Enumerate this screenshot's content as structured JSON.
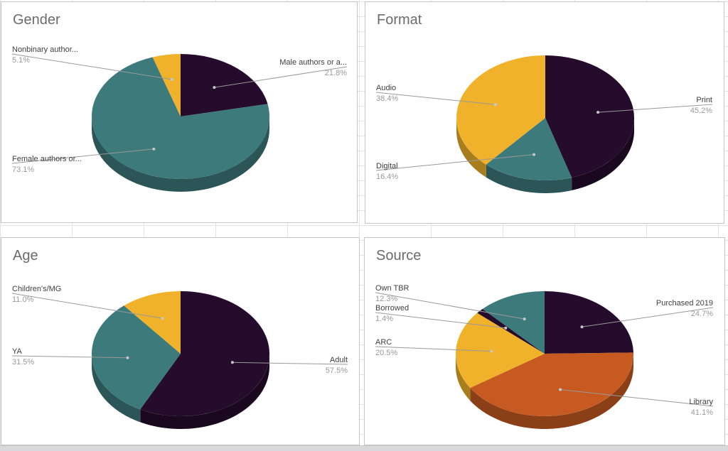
{
  "colors": {
    "dark_purple": "#250b2c",
    "teal": "#3d7a7c",
    "yellow": "#f0b22b",
    "orange": "#c75a21",
    "leader": "#9a9a9a"
  },
  "chart_data": [
    {
      "type": "pie",
      "title": "Gender",
      "slices": [
        {
          "label": "Male authors or a...",
          "value": 21.8,
          "pct_label": "21.8%",
          "color": "#250b2c"
        },
        {
          "label": "Female authors or...",
          "value": 73.1,
          "pct_label": "73.1%",
          "color": "#3d7a7c"
        },
        {
          "label": "Nonbinary author...",
          "value": 5.1,
          "pct_label": "5.1%",
          "color": "#f0b22b"
        }
      ]
    },
    {
      "type": "pie",
      "title": "Format",
      "slices": [
        {
          "label": "Print",
          "value": 45.2,
          "pct_label": "45.2%",
          "color": "#250b2c"
        },
        {
          "label": "Digital",
          "value": 16.4,
          "pct_label": "16.4%",
          "color": "#3d7a7c"
        },
        {
          "label": "Audio",
          "value": 38.4,
          "pct_label": "38.4%",
          "color": "#f0b22b"
        }
      ]
    },
    {
      "type": "pie",
      "title": "Age",
      "slices": [
        {
          "label": "Adult",
          "value": 57.5,
          "pct_label": "57.5%",
          "color": "#250b2c"
        },
        {
          "label": "YA",
          "value": 31.5,
          "pct_label": "31.5%",
          "color": "#3d7a7c"
        },
        {
          "label": "Children's/MG",
          "value": 11.0,
          "pct_label": "11.0%",
          "color": "#f0b22b"
        }
      ]
    },
    {
      "type": "pie",
      "title": "Source",
      "slices": [
        {
          "label": "Purchased 2019",
          "value": 24.7,
          "pct_label": "24.7%",
          "color": "#250b2c"
        },
        {
          "label": "Library",
          "value": 41.1,
          "pct_label": "41.1%",
          "color": "#c75a21"
        },
        {
          "label": "ARC",
          "value": 20.5,
          "pct_label": "20.5%",
          "color": "#f0b22b"
        },
        {
          "label": "Borrowed",
          "value": 1.4,
          "pct_label": "1.4%",
          "color": "#250b2c"
        },
        {
          "label": "Own TBR",
          "value": 12.3,
          "pct_label": "12.3%",
          "color": "#3d7a7c"
        }
      ]
    }
  ]
}
